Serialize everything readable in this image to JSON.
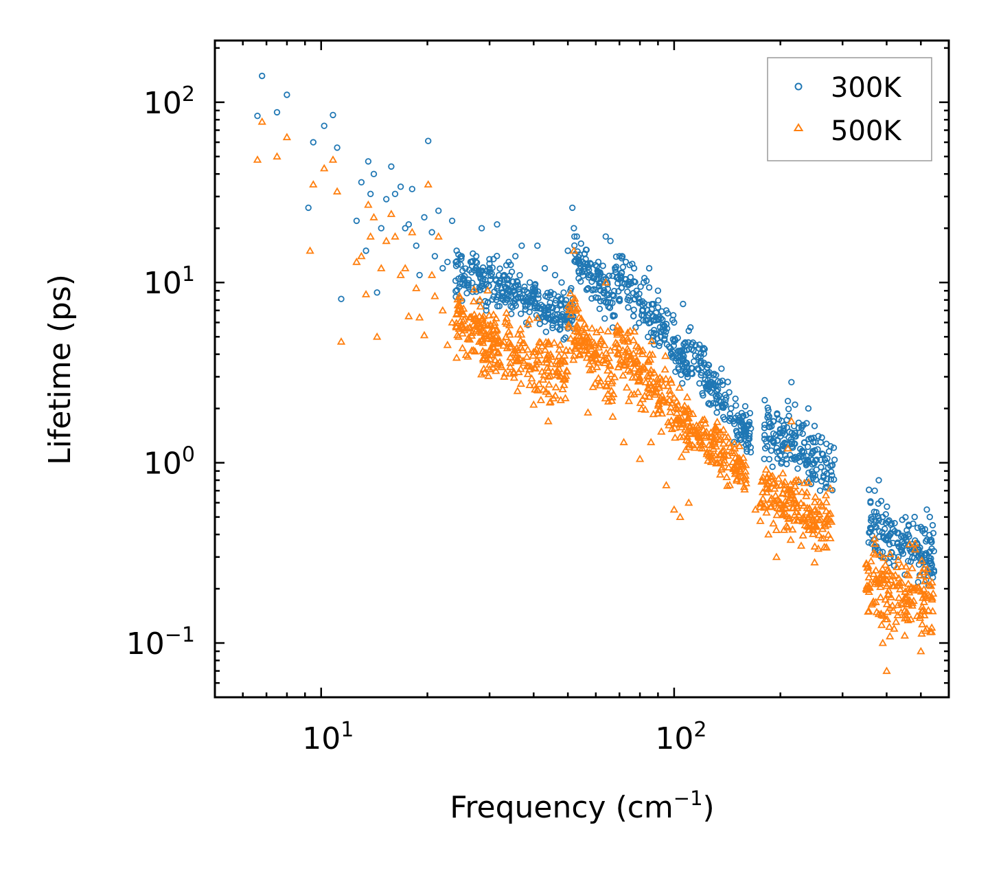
{
  "chart_data": {
    "type": "scatter",
    "xscale": "log",
    "yscale": "log",
    "xlabel": "Frequency (cm",
    "xlabel_sup": "−1",
    "xlabel_end": ")",
    "ylabel": "Lifetime (ps)",
    "xlim": [
      5,
      600
    ],
    "ylim": [
      0.05,
      220
    ],
    "x_ticks": [
      {
        "value": 10,
        "base": "10",
        "exp": "1"
      },
      {
        "value": 100,
        "base": "10",
        "exp": "2"
      }
    ],
    "y_ticks": [
      {
        "value": 0.1,
        "base": "10",
        "exp": "−1"
      },
      {
        "value": 1,
        "base": "10",
        "exp": "0"
      },
      {
        "value": 10,
        "base": "10",
        "exp": "1"
      },
      {
        "value": 100,
        "base": "10",
        "exp": "2"
      }
    ],
    "legend_position": "top-right",
    "series": [
      {
        "name": "300K",
        "marker": "circle",
        "color": "#1f77b4",
        "points": [
          [
            6.6,
            84
          ],
          [
            6.8,
            140
          ],
          [
            7.5,
            88
          ],
          [
            8.0,
            110
          ],
          [
            9.2,
            26
          ],
          [
            9.5,
            60
          ],
          [
            10.2,
            74
          ],
          [
            10.8,
            85
          ],
          [
            11.1,
            56
          ],
          [
            11.4,
            8.1
          ],
          [
            12.6,
            22
          ],
          [
            13.0,
            36
          ],
          [
            13.4,
            15
          ],
          [
            13.6,
            47
          ],
          [
            13.8,
            31
          ],
          [
            14.1,
            40
          ],
          [
            14.4,
            8.8
          ],
          [
            14.8,
            20
          ],
          [
            15.3,
            29
          ],
          [
            15.8,
            44
          ],
          [
            16.2,
            31
          ],
          [
            16.8,
            34
          ],
          [
            17.3,
            20
          ],
          [
            17.7,
            21
          ],
          [
            18.1,
            33
          ],
          [
            18.6,
            16
          ],
          [
            19.0,
            11
          ],
          [
            19.6,
            23
          ],
          [
            20.1,
            61
          ],
          [
            20.6,
            19
          ],
          [
            21.0,
            14
          ],
          [
            21.5,
            25
          ],
          [
            22.1,
            12
          ],
          [
            22.8,
            13
          ],
          [
            23.5,
            22
          ],
          [
            24.2,
            15
          ],
          [
            25.0,
            14
          ],
          [
            26.5,
            13
          ],
          [
            27.5,
            14
          ],
          [
            28.5,
            20
          ],
          [
            30.0,
            12
          ],
          [
            31.5,
            21
          ],
          [
            33.0,
            11
          ],
          [
            34.0,
            13
          ],
          [
            35.5,
            14
          ],
          [
            37.0,
            16
          ],
          [
            39.0,
            10
          ],
          [
            41.0,
            16
          ],
          [
            43.0,
            12
          ],
          [
            46.0,
            11
          ],
          [
            48.0,
            10
          ],
          [
            50.0,
            15
          ],
          [
            51.5,
            26
          ],
          [
            52.0,
            20
          ],
          [
            53.0,
            18
          ],
          [
            55.0,
            13
          ],
          [
            58.0,
            11
          ],
          [
            61.0,
            13
          ],
          [
            64.0,
            18
          ],
          [
            66.0,
            17
          ],
          [
            70.0,
            14
          ],
          [
            73.0,
            13
          ],
          [
            77.0,
            12
          ],
          [
            82.0,
            10
          ],
          [
            85.0,
            12
          ],
          [
            90.0,
            9
          ],
          [
            95.0,
            7
          ],
          [
            100.0,
            6
          ],
          [
            106.0,
            7.6
          ],
          [
            110.0,
            5.4
          ],
          [
            115.0,
            4.5
          ],
          [
            125.0,
            3.5
          ],
          [
            135.0,
            2.8
          ],
          [
            145.0,
            2.0
          ],
          [
            155.0,
            1.7
          ],
          [
            165.0,
            1.55
          ],
          [
            180.0,
            1.05
          ],
          [
            190.0,
            0.95
          ],
          [
            200.0,
            1.4
          ],
          [
            210.0,
            2.2
          ],
          [
            215.0,
            2.8
          ],
          [
            220.0,
            2.1
          ],
          [
            230.0,
            1.6
          ],
          [
            240.0,
            2.0
          ],
          [
            250.0,
            1.6
          ],
          [
            260.0,
            1.3
          ],
          [
            270.0,
            1.0
          ],
          [
            280.0,
            0.85
          ],
          [
            360.0,
            0.6
          ],
          [
            370.0,
            0.7
          ],
          [
            380.0,
            0.8
          ],
          [
            390.0,
            0.5
          ],
          [
            410.0,
            0.3
          ],
          [
            430.0,
            0.36
          ],
          [
            460.0,
            0.4
          ],
          [
            480.0,
            0.5
          ],
          [
            500.0,
            0.44
          ],
          [
            520.0,
            0.55
          ],
          [
            530.0,
            0.5
          ],
          [
            540.0,
            0.45
          ]
        ],
        "clusters": [
          {
            "x": [
              24,
              52
            ],
            "y0": 11.5,
            "y1": 6.5,
            "spread": 0.45
          },
          {
            "x": [
              52,
              68
            ],
            "y0": 14,
            "y1": 8,
            "spread": 0.45
          },
          {
            "x": [
              68,
              110
            ],
            "y0": 11,
            "y1": 3.5,
            "spread": 0.5
          },
          {
            "x": [
              110,
              165
            ],
            "y0": 4,
            "y1": 1.4,
            "spread": 0.45
          },
          {
            "x": [
              180,
              285
            ],
            "y0": 1.6,
            "y1": 0.9,
            "spread": 0.55
          },
          {
            "x": [
              355,
              545
            ],
            "y0": 0.45,
            "y1": 0.3,
            "spread": 0.6
          }
        ]
      },
      {
        "name": "500K",
        "marker": "triangle",
        "color": "#ff7f0e",
        "points": [
          [
            6.6,
            48
          ],
          [
            6.8,
            78
          ],
          [
            7.5,
            50
          ],
          [
            8.0,
            64
          ],
          [
            9.3,
            15
          ],
          [
            9.5,
            35
          ],
          [
            10.2,
            43
          ],
          [
            10.8,
            48
          ],
          [
            11.1,
            32
          ],
          [
            11.4,
            4.7
          ],
          [
            12.6,
            13
          ],
          [
            13.0,
            14
          ],
          [
            13.4,
            8.6
          ],
          [
            13.6,
            27
          ],
          [
            13.8,
            18
          ],
          [
            14.1,
            23
          ],
          [
            14.4,
            5.0
          ],
          [
            14.8,
            12
          ],
          [
            15.3,
            17
          ],
          [
            15.8,
            24
          ],
          [
            16.2,
            18
          ],
          [
            16.8,
            11
          ],
          [
            17.3,
            12
          ],
          [
            17.7,
            6.5
          ],
          [
            18.1,
            19
          ],
          [
            18.6,
            9.3
          ],
          [
            19.0,
            6.4
          ],
          [
            19.6,
            5.1
          ],
          [
            20.1,
            35
          ],
          [
            20.6,
            11
          ],
          [
            21.0,
            8.4
          ],
          [
            21.5,
            18
          ],
          [
            22.1,
            7.0
          ],
          [
            22.8,
            4.5
          ],
          [
            23.5,
            6
          ],
          [
            24.5,
            5
          ],
          [
            27.0,
            4.2
          ],
          [
            30.0,
            3.5
          ],
          [
            33.0,
            3.0
          ],
          [
            36.0,
            2.5
          ],
          [
            40.0,
            2.1
          ],
          [
            44.0,
            1.7
          ],
          [
            52.0,
            15
          ],
          [
            57.0,
            1.9
          ],
          [
            64.0,
            10
          ],
          [
            67.0,
            1.8
          ],
          [
            72.0,
            1.3
          ],
          [
            80.0,
            1.05
          ],
          [
            86.0,
            1.3
          ],
          [
            95.0,
            0.75
          ],
          [
            100.0,
            0.55
          ],
          [
            104.0,
            0.5
          ],
          [
            110.0,
            0.6
          ],
          [
            120.0,
            1.2
          ],
          [
            135.0,
            1.0
          ],
          [
            150.0,
            0.9
          ],
          [
            170.0,
            0.55
          ],
          [
            185.0,
            0.4
          ],
          [
            195.0,
            0.3
          ],
          [
            210.0,
            1.2
          ],
          [
            215.0,
            1.7
          ],
          [
            225.0,
            0.8
          ],
          [
            240.0,
            0.5
          ],
          [
            250.0,
            0.28
          ],
          [
            270.0,
            0.34
          ],
          [
            350.0,
            0.2
          ],
          [
            370.0,
            0.38
          ],
          [
            380.0,
            0.22
          ],
          [
            390.0,
            0.1
          ],
          [
            400.0,
            0.07
          ],
          [
            420.0,
            0.12
          ],
          [
            450.0,
            0.11
          ],
          [
            480.0,
            0.2
          ],
          [
            500.0,
            0.09
          ],
          [
            520.0,
            0.12
          ],
          [
            540.0,
            0.15
          ]
        ],
        "clusters": [
          {
            "x": [
              24,
              50
            ],
            "y0": 6.2,
            "y1": 3.0,
            "spread": 0.6
          },
          {
            "x": [
              50,
              68
            ],
            "y0": 6,
            "y1": 2.8,
            "spread": 0.65
          },
          {
            "x": [
              68,
              110
            ],
            "y0": 4.5,
            "y1": 1.6,
            "spread": 0.6
          },
          {
            "x": [
              110,
              160
            ],
            "y0": 1.6,
            "y1": 0.9,
            "spread": 0.45
          },
          {
            "x": [
              175,
              280
            ],
            "y0": 0.7,
            "y1": 0.45,
            "spread": 0.6
          },
          {
            "x": [
              350,
              545
            ],
            "y0": 0.22,
            "y1": 0.17,
            "spread": 0.7
          }
        ]
      }
    ]
  }
}
